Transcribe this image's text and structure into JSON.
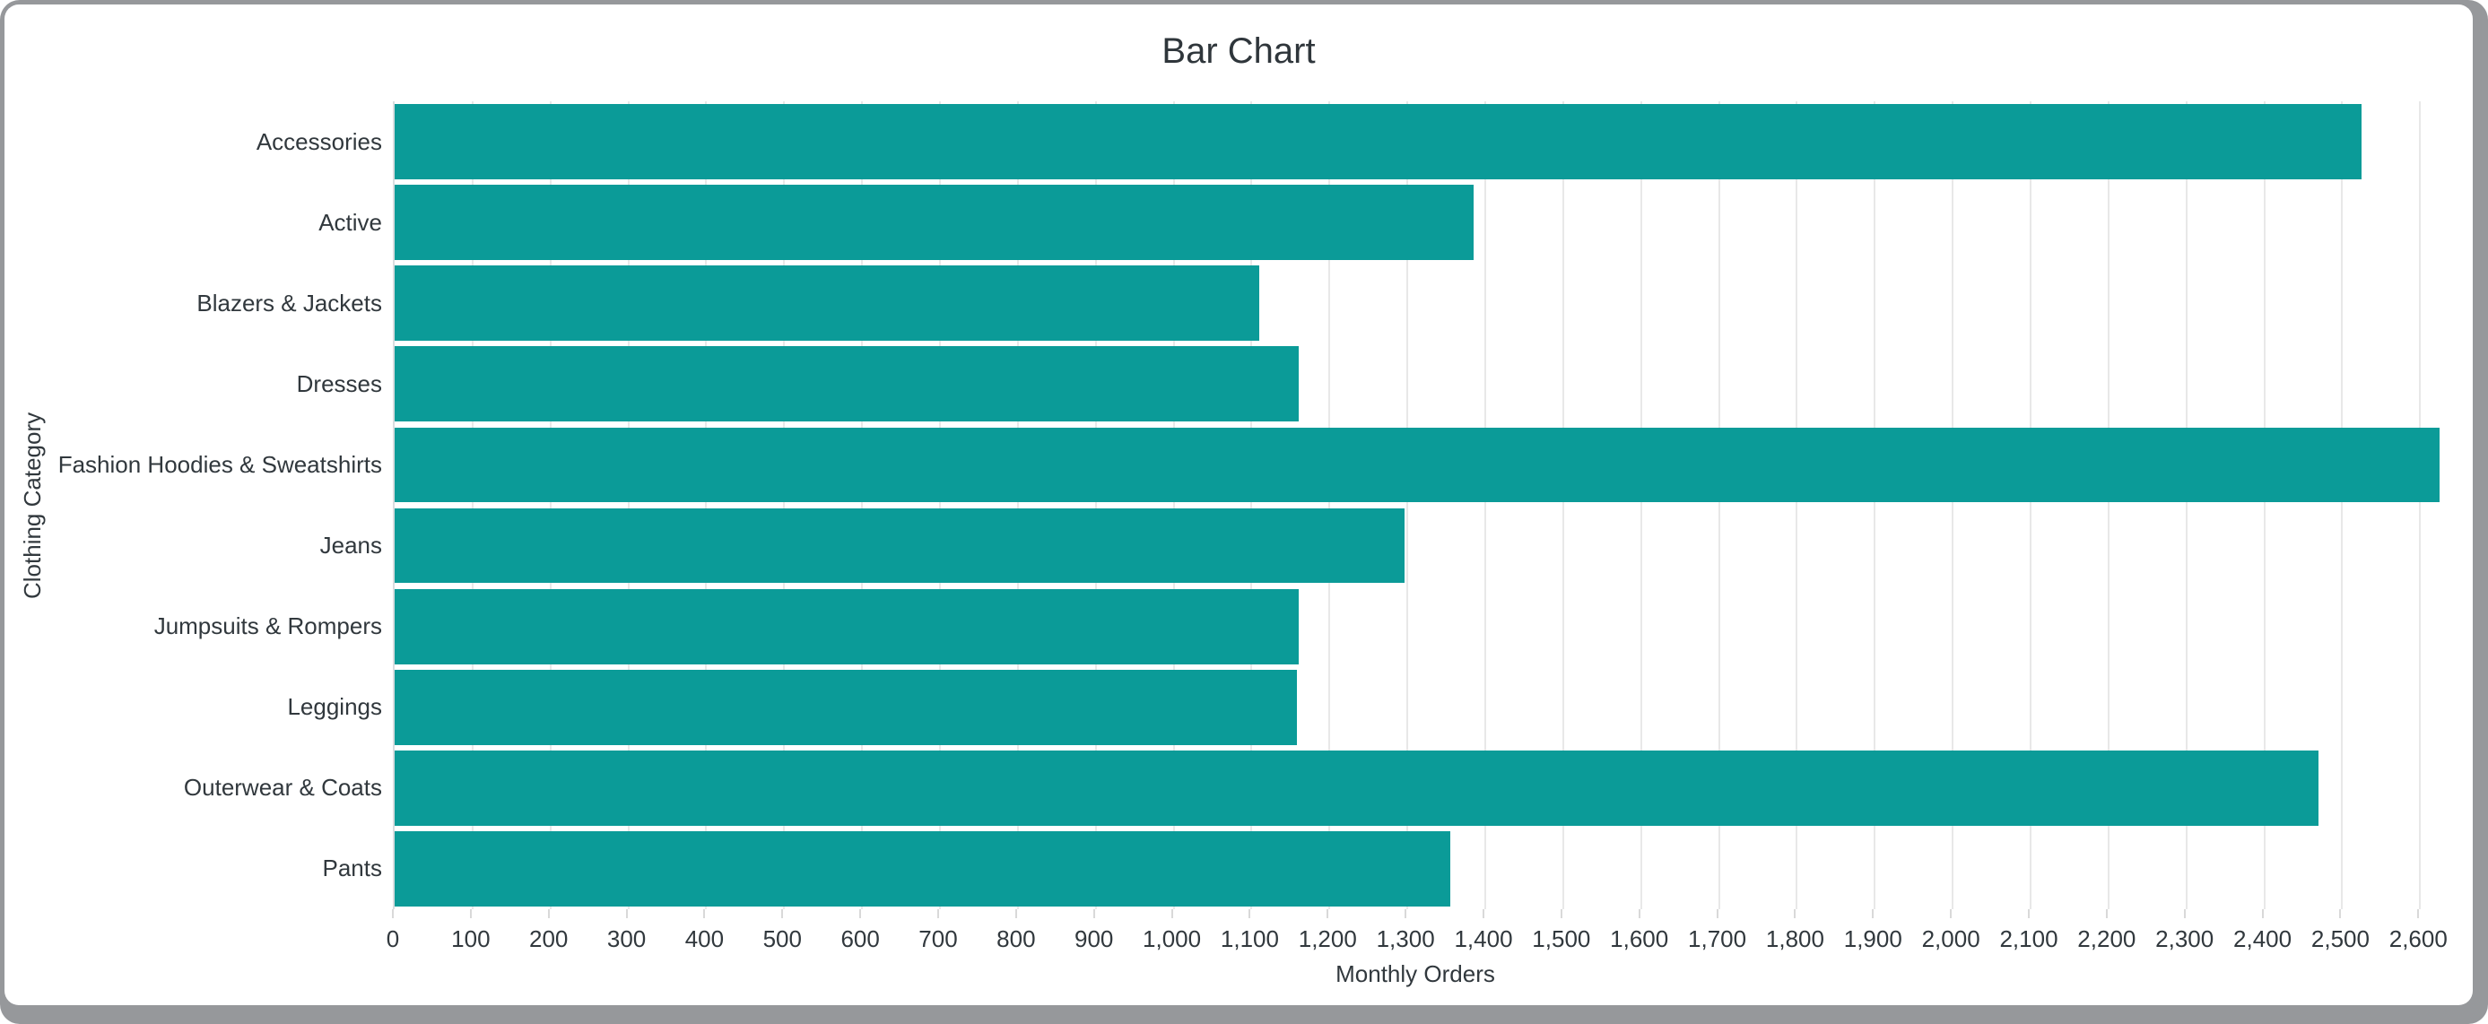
{
  "frame": {
    "border_color": "#96989b",
    "card_background": "#ffffff"
  },
  "chart_data": {
    "type": "bar",
    "orientation": "horizontal",
    "title": "Bar Chart",
    "xlabel": "Monthly Orders",
    "ylabel": "Clothing Category",
    "categories": [
      "Accessories",
      "Active",
      "Blazers & Jackets",
      "Dresses",
      "Fashion Hoodies & Sweatshirts",
      "Jeans",
      "Jumpsuits & Rompers",
      "Leggings",
      "Outerwear & Coats",
      "Pants"
    ],
    "values": [
      2525,
      1385,
      1110,
      1160,
      2625,
      1296,
      1160,
      1158,
      2470,
      1355
    ],
    "xlim": [
      0,
      2625
    ],
    "xticks": {
      "start": 0,
      "end": 2600,
      "step": 100,
      "format": "thousands-comma"
    },
    "grid": true,
    "legend": false,
    "colors": {
      "bar": "#0b9b98",
      "text": "#31383d",
      "gridline": "#e8e8e8",
      "axis_line": "#d9dde0",
      "tick_mark": "#d9d9d9"
    }
  }
}
